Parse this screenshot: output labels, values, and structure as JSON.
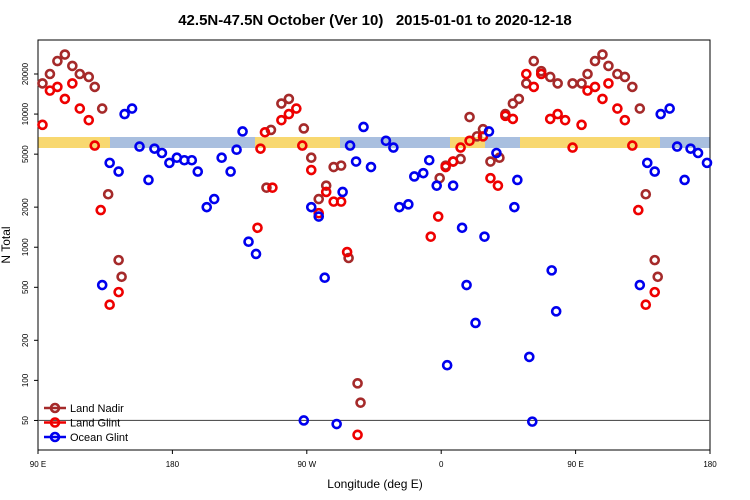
{
  "chart_data": {
    "type": "scatter",
    "title": "42.5N-47.5N October (Ver 10)   2015-01-01 to 2020-12-18",
    "x_label": "Longitude (deg E)",
    "y_label": "N Total",
    "log_y": true,
    "legend": "lower left",
    "reference_line": 50,
    "xlim": [
      90,
      540
    ],
    "ylim": [
      30,
      36000
    ],
    "xticks": [
      {
        "value": 90,
        "label": "90 E"
      },
      {
        "value": 180,
        "label": "180"
      },
      {
        "value": 270,
        "label": "90 W"
      },
      {
        "value": 360,
        "label": "0"
      },
      {
        "value": 450,
        "label": "90 E"
      },
      {
        "value": 540,
        "label": "180"
      }
    ],
    "yticks": [
      50,
      100,
      200,
      500,
      1000,
      2000,
      5000,
      10000,
      20000
    ],
    "series": [
      {
        "name": "Land Nadir",
        "color": "#a52a2a",
        "x": [
          93,
          98,
          103,
          108,
          113,
          118,
          124,
          128,
          133,
          137,
          144,
          146,
          243,
          246,
          253,
          258,
          268,
          273,
          278,
          283,
          288,
          293,
          298,
          304,
          306,
          359,
          363,
          368,
          373,
          379,
          384,
          388,
          393,
          399,
          403,
          408,
          412,
          417,
          422,
          427,
          433,
          438,
          448,
          454,
          458,
          463,
          468,
          472,
          478,
          483,
          488,
          493,
          497,
          503,
          505
        ],
        "values": [
          17000,
          20000,
          25000,
          28000,
          23000,
          20000,
          19000,
          16000,
          11000,
          2500,
          800,
          600,
          2800,
          7600,
          12000,
          13000,
          7800,
          4700,
          2300,
          2900,
          4000,
          4100,
          830,
          95,
          68,
          3300,
          4100,
          4400,
          4600,
          9500,
          6800,
          7700,
          4400,
          4700,
          10000,
          12000,
          13000,
          17000,
          25000,
          21000,
          19000,
          17000,
          17000,
          17000,
          20000,
          25000,
          28000,
          23000,
          20000,
          19000,
          16000,
          11000,
          2500,
          800,
          600
        ]
      },
      {
        "name": "Land Glint",
        "color": "#ee0000",
        "x": [
          93,
          98,
          103,
          108,
          113,
          118,
          124,
          128,
          132,
          138,
          144,
          237,
          239,
          242,
          247,
          253,
          258,
          263,
          267,
          273,
          278,
          283,
          288,
          293,
          297,
          304,
          353,
          358,
          363,
          368,
          373,
          379,
          388,
          393,
          398,
          403,
          408,
          417,
          422,
          427,
          433,
          438,
          443,
          448,
          454,
          458,
          463,
          468,
          472,
          478,
          483,
          488,
          492,
          497,
          503
        ],
        "values": [
          8300,
          15000,
          16000,
          13000,
          17000,
          11000,
          9000,
          5800,
          1900,
          370,
          460,
          1400,
          5500,
          7300,
          2800,
          9000,
          10000,
          11000,
          5800,
          3800,
          1800,
          2600,
          2200,
          2200,
          920,
          39,
          1200,
          1700,
          4000,
          4400,
          5600,
          6300,
          6800,
          3300,
          2900,
          9700,
          9200,
          20000,
          16000,
          20000,
          9200,
          10000,
          9000,
          5600,
          8300,
          15000,
          16000,
          13000,
          17000,
          11000,
          9000,
          5800,
          1900,
          370,
          460
        ]
      },
      {
        "name": "Ocean Glint",
        "color": "#0000ee",
        "x": [
          133,
          138,
          144,
          148,
          153,
          158,
          164,
          168,
          173,
          178,
          183,
          188,
          193,
          197,
          203,
          208,
          213,
          219,
          223,
          227,
          231,
          236,
          268,
          273,
          278,
          282,
          290,
          294,
          299,
          303,
          308,
          313,
          323,
          328,
          332,
          338,
          342,
          348,
          352,
          357,
          364,
          368,
          374,
          377,
          383,
          389,
          392,
          397,
          409,
          411,
          419,
          421,
          434,
          437,
          493,
          498,
          503,
          507,
          513,
          518,
          523,
          527,
          532,
          538
        ],
        "values": [
          520,
          4300,
          3700,
          10000,
          11000,
          5700,
          3200,
          5500,
          5100,
          4300,
          4700,
          4500,
          4500,
          3700,
          2000,
          2300,
          4700,
          3700,
          5400,
          7400,
          1100,
          890,
          50,
          2000,
          1700,
          590,
          47,
          2600,
          5800,
          4400,
          8000,
          4000,
          6300,
          5600,
          2000,
          2100,
          3400,
          3600,
          4500,
          2900,
          130,
          2900,
          1400,
          520,
          270,
          1200,
          7400,
          5100,
          2000,
          3200,
          150,
          49,
          670,
          330,
          520,
          4300,
          3700,
          10000,
          11000,
          5700,
          3200,
          5500,
          5100,
          4300
        ]
      }
    ]
  }
}
